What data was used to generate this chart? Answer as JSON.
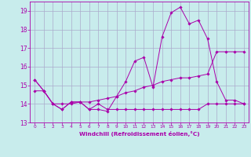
{
  "background_color": "#c8ecec",
  "grid_color": "#aaaacc",
  "line_color": "#aa00aa",
  "xlim": [
    -0.5,
    23.5
  ],
  "ylim": [
    13,
    19.5
  ],
  "yticks": [
    13,
    14,
    15,
    16,
    17,
    18,
    19
  ],
  "xticks": [
    0,
    1,
    2,
    3,
    4,
    5,
    6,
    7,
    8,
    9,
    10,
    11,
    12,
    13,
    14,
    15,
    16,
    17,
    18,
    19,
    20,
    21,
    22,
    23
  ],
  "xlabel": "Windchill (Refroidissement éolien,°C)",
  "series": [
    [
      15.3,
      14.7,
      14.0,
      13.7,
      14.1,
      14.1,
      13.7,
      13.7,
      13.6,
      14.4,
      15.2,
      16.3,
      16.5,
      14.9,
      17.6,
      18.9,
      19.2,
      18.3,
      18.5,
      17.5,
      15.2,
      14.2,
      14.2,
      14.0
    ],
    [
      14.7,
      14.7,
      14.0,
      13.7,
      14.1,
      14.1,
      13.7,
      14.0,
      13.7,
      13.7,
      13.7,
      13.7,
      13.7,
      13.7,
      13.7,
      13.7,
      13.7,
      13.7,
      13.7,
      14.0,
      14.0,
      14.0,
      14.0,
      14.0
    ],
    [
      15.3,
      14.7,
      14.0,
      14.0,
      14.0,
      14.1,
      14.1,
      14.2,
      14.3,
      14.4,
      14.6,
      14.7,
      14.9,
      15.0,
      15.2,
      15.3,
      15.4,
      15.4,
      15.5,
      15.6,
      16.8,
      16.8,
      16.8,
      16.8
    ]
  ]
}
